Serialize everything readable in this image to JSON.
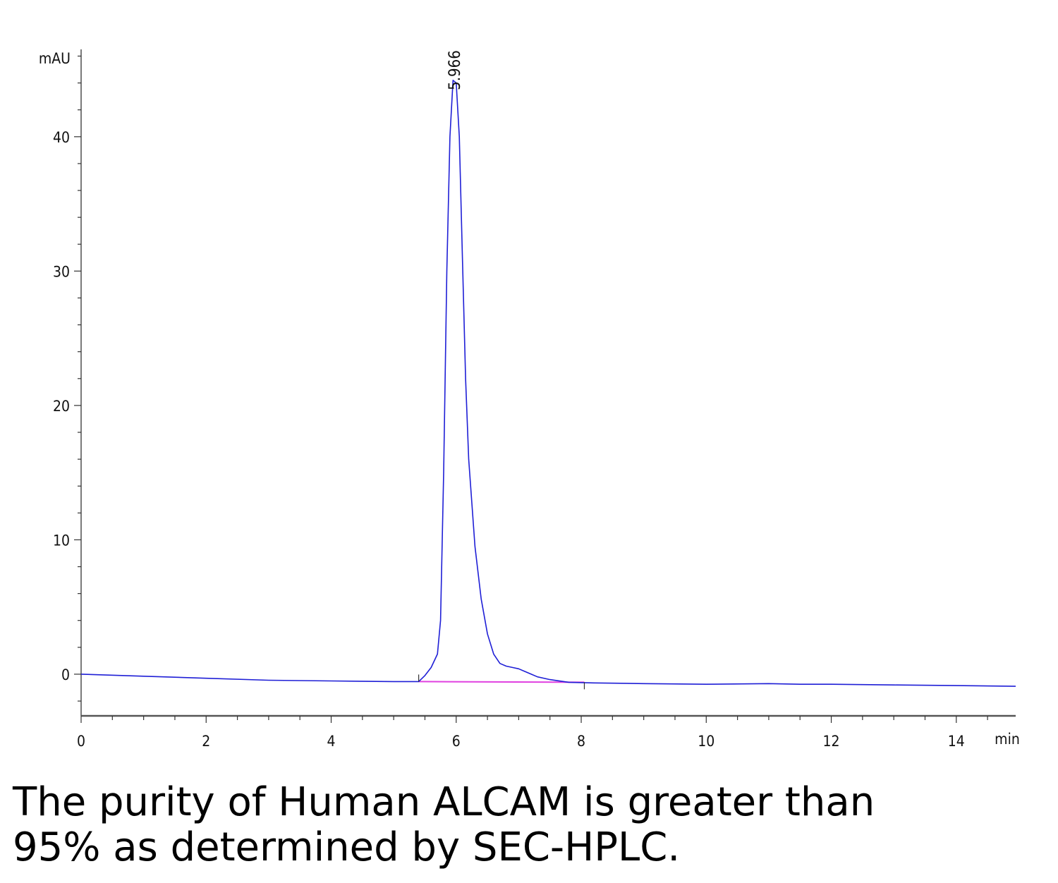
{
  "chart_data": {
    "type": "line",
    "y_unit": "mAU",
    "x_unit": "min",
    "xlim": [
      0,
      14.95
    ],
    "ylim": [
      -3.1,
      46.5
    ],
    "x_ticks": [
      0,
      2,
      4,
      6,
      8,
      10,
      12,
      14
    ],
    "y_ticks": [
      0,
      10,
      20,
      30,
      40
    ],
    "x_minor_step": 0.5,
    "y_minor_step": 2,
    "grid": false,
    "series": [
      {
        "color": "#1f1fd6",
        "x": [
          0,
          1,
          2,
          3,
          4,
          5,
          5.4,
          5.5,
          5.6,
          5.7,
          5.75,
          5.8,
          5.85,
          5.9,
          5.95,
          6.0,
          6.05,
          6.1,
          6.15,
          6.2,
          6.3,
          6.4,
          6.5,
          6.6,
          6.7,
          6.8,
          6.9,
          7.0,
          7.1,
          7.2,
          7.3,
          7.5,
          7.8,
          8.2,
          9,
          10,
          11,
          11.5,
          12,
          13,
          14,
          14.95
        ],
        "y": [
          0.0,
          -0.15,
          -0.3,
          -0.45,
          -0.5,
          -0.55,
          -0.55,
          -0.1,
          0.5,
          1.5,
          4.0,
          15.0,
          30.0,
          40.0,
          44.2,
          44.0,
          40.0,
          31.0,
          22.0,
          16.0,
          9.5,
          5.6,
          3.0,
          1.5,
          0.8,
          0.6,
          0.5,
          0.4,
          0.2,
          0.0,
          -0.2,
          -0.4,
          -0.6,
          -0.65,
          -0.7,
          -0.75,
          -0.7,
          -0.75,
          -0.75,
          -0.8,
          -0.85,
          -0.9
        ]
      }
    ],
    "baseline": {
      "color": "#e040e0",
      "x": [
        5.4,
        8.05
      ],
      "y": [
        -0.55,
        -0.6
      ]
    },
    "integration_ticks_x": [
      5.4,
      8.05
    ],
    "annotations": [
      {
        "text": "5.966",
        "x": 5.966,
        "y": 44.2
      }
    ]
  },
  "caption": {
    "line1": "The purity of Human ALCAM is greater than",
    "line2": "95% as determined by SEC-HPLC."
  }
}
